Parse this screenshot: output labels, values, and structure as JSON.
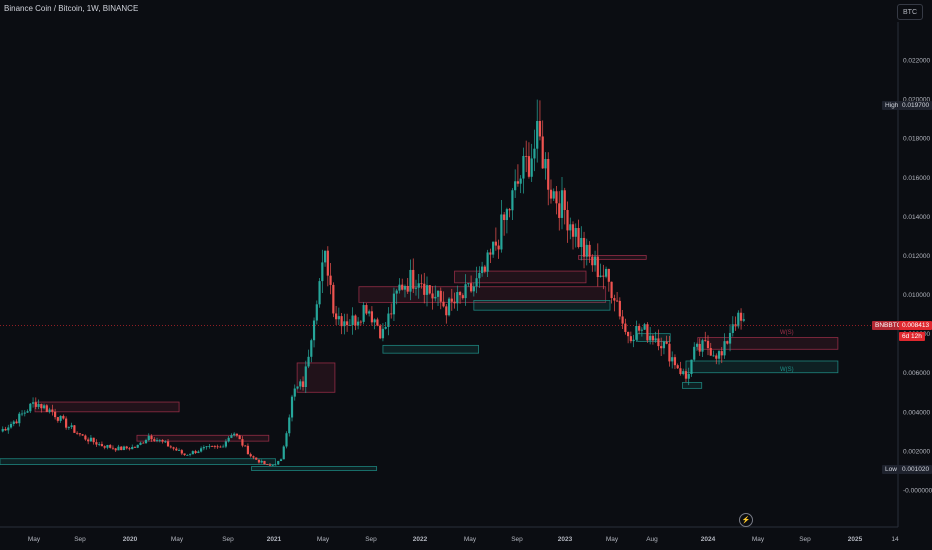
{
  "header": {
    "title": "Binance Coin / Bitcoin, 1W, BINANCE",
    "currency_button": "BTC"
  },
  "price_tags": {
    "high_label": "High",
    "high_value": "0.019700",
    "low_label": "Low",
    "low_value": "0.001020",
    "symbol_label": "BNBBTC",
    "current_value": "0.008413",
    "countdown": "6d 12h"
  },
  "zone_labels": {
    "resistance": "W(S)",
    "support": "W(S)"
  },
  "colors": {
    "up": "#26a69a",
    "down": "#ef5350",
    "supply": "#a0304a",
    "demand": "#1f8f87",
    "background": "#0b0d12"
  },
  "chart_data": {
    "type": "candlestick",
    "ylim": [
      0.0,
      0.024
    ],
    "y_ticks": [
      "-0.000000",
      "0.002000",
      "0.004000",
      "0.006000",
      "0.008000",
      "0.010000",
      "0.012000",
      "0.014000",
      "0.016000",
      "0.018000",
      "0.020000",
      "0.022000"
    ],
    "x_ticks": [
      "May",
      "Sep",
      "2020",
      "May",
      "Sep",
      "2021",
      "May",
      "Sep",
      "2022",
      "May",
      "Sep",
      "2023",
      "May",
      "Aug",
      "2024",
      "May",
      "Sep",
      "2025",
      "14"
    ],
    "date_range": [
      "2019-02",
      "2024-04"
    ],
    "close_path": [
      {
        "date": "2019-02-01",
        "close": 0.003
      },
      {
        "date": "2019-03-15",
        "close": 0.0036
      },
      {
        "date": "2019-05-01",
        "close": 0.0045
      },
      {
        "date": "2019-06-15",
        "close": 0.004
      },
      {
        "date": "2019-07-15",
        "close": 0.0034
      },
      {
        "date": "2019-09-01",
        "close": 0.0027
      },
      {
        "date": "2019-10-15",
        "close": 0.0023
      },
      {
        "date": "2019-12-01",
        "close": 0.0021
      },
      {
        "date": "2020-01-15",
        "close": 0.0022
      },
      {
        "date": "2020-02-15",
        "close": 0.0028
      },
      {
        "date": "2020-04-01",
        "close": 0.0023
      },
      {
        "date": "2020-05-15",
        "close": 0.0018
      },
      {
        "date": "2020-07-01",
        "close": 0.0021
      },
      {
        "date": "2020-08-15",
        "close": 0.0022
      },
      {
        "date": "2020-09-15",
        "close": 0.003
      },
      {
        "date": "2020-11-01",
        "close": 0.0017
      },
      {
        "date": "2020-12-15",
        "close": 0.0012
      },
      {
        "date": "2021-01-15",
        "close": 0.0015
      },
      {
        "date": "2021-02-15",
        "close": 0.005
      },
      {
        "date": "2021-03-15",
        "close": 0.0055
      },
      {
        "date": "2021-04-15",
        "close": 0.01
      },
      {
        "date": "2021-05-10",
        "close": 0.012
      },
      {
        "date": "2021-06-01",
        "close": 0.009
      },
      {
        "date": "2021-07-15",
        "close": 0.0086
      },
      {
        "date": "2021-08-20",
        "close": 0.0095
      },
      {
        "date": "2021-10-01",
        "close": 0.008
      },
      {
        "date": "2021-11-15",
        "close": 0.0105
      },
      {
        "date": "2022-01-01",
        "close": 0.011
      },
      {
        "date": "2022-02-01",
        "close": 0.01
      },
      {
        "date": "2022-03-15",
        "close": 0.0093
      },
      {
        "date": "2022-05-01",
        "close": 0.01
      },
      {
        "date": "2022-06-15",
        "close": 0.011
      },
      {
        "date": "2022-08-01",
        "close": 0.0135
      },
      {
        "date": "2022-09-15",
        "close": 0.016
      },
      {
        "date": "2022-11-01",
        "close": 0.018
      },
      {
        "date": "2022-12-01",
        "close": 0.0155
      },
      {
        "date": "2023-01-15",
        "close": 0.014
      },
      {
        "date": "2023-03-01",
        "close": 0.012
      },
      {
        "date": "2023-04-15",
        "close": 0.011
      },
      {
        "date": "2023-05-15",
        "close": 0.01
      },
      {
        "date": "2023-06-10",
        "close": 0.008
      },
      {
        "date": "2023-07-15",
        "close": 0.0082
      },
      {
        "date": "2023-09-01",
        "close": 0.0078
      },
      {
        "date": "2023-10-15",
        "close": 0.0065
      },
      {
        "date": "2023-11-10",
        "close": 0.0057
      },
      {
        "date": "2023-12-01",
        "close": 0.007
      },
      {
        "date": "2024-01-01",
        "close": 0.0074
      },
      {
        "date": "2024-02-10",
        "close": 0.0068
      },
      {
        "date": "2024-03-10",
        "close": 0.0088
      },
      {
        "date": "2024-04-08",
        "close": 0.0084
      }
    ],
    "zones": [
      {
        "kind": "supply",
        "from": "2019-05-01",
        "to": "2020-05-01",
        "low": 0.004,
        "high": 0.0045
      },
      {
        "kind": "demand",
        "from": "2019-02-01",
        "to": "2021-01-01",
        "low": 0.0013,
        "high": 0.0016
      },
      {
        "kind": "supply",
        "from": "2020-01-15",
        "to": "2020-12-15",
        "low": 0.0025,
        "high": 0.0028
      },
      {
        "kind": "demand",
        "from": "2020-11-01",
        "to": "2021-09-15",
        "low": 0.001,
        "high": 0.0012
      },
      {
        "kind": "supply",
        "from": "2021-02-25",
        "to": "2021-06-01",
        "low": 0.005,
        "high": 0.0065
      },
      {
        "kind": "supply",
        "from": "2021-08-01",
        "to": "2023-04-20",
        "low": 0.0096,
        "high": 0.0104
      },
      {
        "kind": "demand",
        "from": "2021-10-01",
        "to": "2022-06-01",
        "low": 0.007,
        "high": 0.0074
      },
      {
        "kind": "supply",
        "from": "2022-04-01",
        "to": "2023-03-01",
        "low": 0.0106,
        "high": 0.0112
      },
      {
        "kind": "demand",
        "from": "2022-05-20",
        "to": "2023-05-01",
        "low": 0.0092,
        "high": 0.0097
      },
      {
        "kind": "supply",
        "from": "2023-02-10",
        "to": "2023-08-01",
        "low": 0.0118,
        "high": 0.012
      },
      {
        "kind": "demand",
        "from": "2023-07-10",
        "to": "2023-10-01",
        "low": 0.0076,
        "high": 0.008
      },
      {
        "kind": "supply",
        "from": "2023-12-10",
        "to": "2024-11-30",
        "low": 0.0072,
        "high": 0.0078
      },
      {
        "kind": "demand",
        "from": "2023-11-10",
        "to": "2024-11-30",
        "low": 0.006,
        "high": 0.0066
      },
      {
        "kind": "demand",
        "from": "2023-11-01",
        "to": "2023-12-20",
        "low": 0.0052,
        "high": 0.0055
      }
    ]
  }
}
